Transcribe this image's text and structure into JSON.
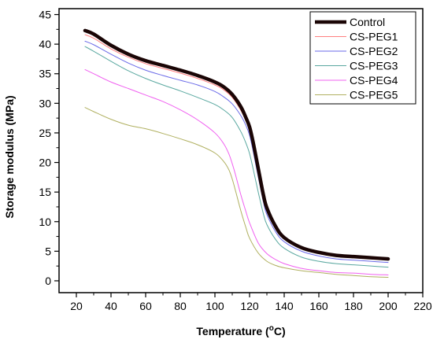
{
  "chart_data": {
    "type": "line",
    "xlabel": "Temperature (°C)",
    "xlabel_parts": {
      "prefix": "Temperature (",
      "sup": "o",
      "suffix": "C)"
    },
    "ylabel": "Storage modulus (MPa)",
    "xlim": [
      10,
      220
    ],
    "ylim": [
      -2,
      46
    ],
    "x_ticks": [
      20,
      40,
      60,
      80,
      100,
      120,
      140,
      160,
      180,
      200,
      220
    ],
    "y_ticks": [
      0,
      5,
      10,
      15,
      20,
      25,
      30,
      35,
      40,
      45
    ],
    "grid": false,
    "legend_position": "top-right",
    "series": [
      {
        "name": "Control",
        "color": "#1a0505",
        "width": 4.5,
        "x": [
          25,
          30,
          40,
          50,
          60,
          70,
          80,
          90,
          100,
          105,
          110,
          115,
          118,
          120,
          122,
          125,
          128,
          130,
          135,
          140,
          150,
          160,
          170,
          180,
          190,
          200
        ],
        "y": [
          42.3,
          41.7,
          39.8,
          38.3,
          37.2,
          36.4,
          35.6,
          34.7,
          33.6,
          32.8,
          31.5,
          29.4,
          27.5,
          26.0,
          23.5,
          19.0,
          14.5,
          12.3,
          9.2,
          7.3,
          5.6,
          4.8,
          4.3,
          4.1,
          3.9,
          3.7
        ]
      },
      {
        "name": "CS-PEG1",
        "color": "#ff7f7f",
        "width": 1,
        "x": [
          25,
          30,
          40,
          50,
          60,
          70,
          80,
          90,
          100,
          105,
          110,
          115,
          118,
          120,
          122,
          125,
          128,
          130,
          135,
          140,
          150,
          160,
          170,
          180,
          190,
          200
        ],
        "y": [
          41.6,
          41.0,
          39.2,
          37.8,
          36.7,
          35.9,
          35.1,
          34.2,
          33.1,
          32.3,
          31.0,
          28.8,
          27.0,
          25.5,
          23.0,
          18.6,
          14.2,
          12.0,
          9.0,
          7.1,
          5.4,
          4.6,
          4.1,
          3.9,
          3.7,
          3.5
        ]
      },
      {
        "name": "CS-PEG2",
        "color": "#6a6ae8",
        "width": 1,
        "x": [
          25,
          30,
          40,
          50,
          60,
          70,
          80,
          90,
          100,
          105,
          110,
          115,
          118,
          120,
          122,
          125,
          128,
          130,
          135,
          140,
          150,
          160,
          170,
          180,
          190,
          200
        ],
        "y": [
          40.5,
          39.9,
          38.3,
          36.8,
          35.6,
          34.7,
          33.9,
          33.1,
          32.0,
          31.1,
          29.9,
          27.9,
          26.2,
          24.6,
          22.0,
          17.6,
          13.3,
          11.2,
          8.3,
          6.6,
          5.0,
          4.2,
          3.7,
          3.5,
          3.3,
          3.1
        ]
      },
      {
        "name": "CS-PEG3",
        "color": "#5aa8a0",
        "width": 1,
        "x": [
          25,
          30,
          40,
          50,
          60,
          70,
          80,
          90,
          100,
          105,
          110,
          115,
          118,
          120,
          122,
          125,
          128,
          130,
          135,
          140,
          150,
          160,
          170,
          180,
          190,
          200
        ],
        "y": [
          39.6,
          38.8,
          37.1,
          35.5,
          34.2,
          33.1,
          32.1,
          31.0,
          29.8,
          28.9,
          27.6,
          25.2,
          23.2,
          21.5,
          19.0,
          15.0,
          11.3,
          9.5,
          7.0,
          5.5,
          4.0,
          3.3,
          2.9,
          2.7,
          2.5,
          2.3
        ]
      },
      {
        "name": "CS-PEG4",
        "color": "#f060f0",
        "width": 1,
        "x": [
          25,
          30,
          40,
          50,
          60,
          70,
          80,
          90,
          100,
          105,
          108,
          110,
          112,
          115,
          118,
          120,
          125,
          130,
          135,
          140,
          150,
          160,
          170,
          180,
          190,
          200
        ],
        "y": [
          35.7,
          35.0,
          33.6,
          32.5,
          31.4,
          30.3,
          28.9,
          27.2,
          25.0,
          23.2,
          21.5,
          19.8,
          17.8,
          14.5,
          11.6,
          9.8,
          6.4,
          4.6,
          3.6,
          2.9,
          2.1,
          1.7,
          1.4,
          1.3,
          1.1,
          1.0
        ]
      },
      {
        "name": "CS-PEG5",
        "color": "#b0b060",
        "width": 1,
        "x": [
          25,
          30,
          40,
          50,
          60,
          70,
          80,
          90,
          100,
          105,
          108,
          110,
          112,
          115,
          118,
          120,
          125,
          130,
          135,
          140,
          150,
          160,
          170,
          180,
          190,
          200
        ],
        "y": [
          29.3,
          28.6,
          27.3,
          26.3,
          25.7,
          24.9,
          24.0,
          23.0,
          21.6,
          20.2,
          18.8,
          17.2,
          15.1,
          11.8,
          8.9,
          7.2,
          4.7,
          3.3,
          2.6,
          2.2,
          1.7,
          1.4,
          1.1,
          0.9,
          0.7,
          0.6
        ]
      }
    ]
  }
}
